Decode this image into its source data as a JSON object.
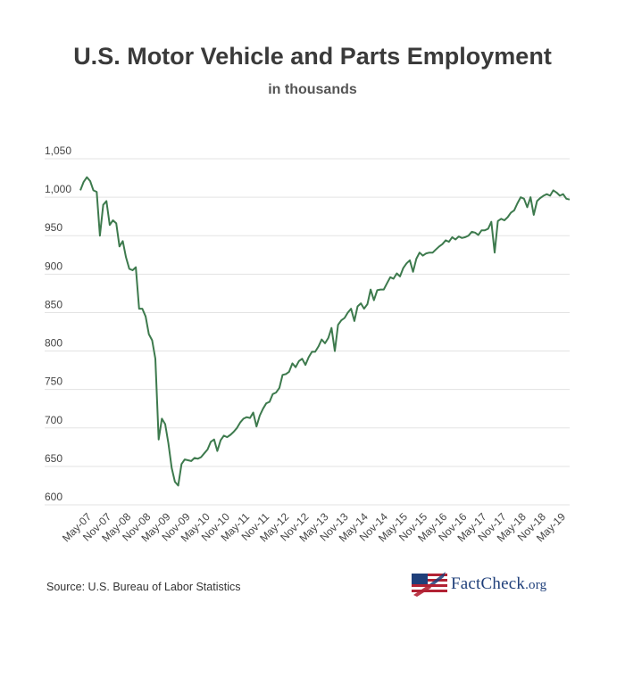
{
  "chart_data": {
    "type": "line",
    "title": "U.S. Motor Vehicle and Parts Employment",
    "subtitle": "in thousands",
    "ylim": [
      600,
      1050
    ],
    "yticks": [
      600,
      650,
      700,
      750,
      800,
      850,
      900,
      950,
      1000,
      1050
    ],
    "ytick_labels": [
      "600",
      "650",
      "700",
      "750",
      "800",
      "850",
      "900",
      "950",
      "1,000",
      "1,050"
    ],
    "xtick_labels": [
      "May-07",
      "Nov-07",
      "May-08",
      "Nov-08",
      "May-09",
      "Nov-09",
      "May-10",
      "Nov-10",
      "May-11",
      "Nov-11",
      "May-12",
      "Nov-12",
      "May-13",
      "Nov-13",
      "May-14",
      "Nov-14",
      "May-15",
      "Nov-15",
      "May-16",
      "Nov-16",
      "May-17",
      "Nov-17",
      "May-18",
      "Nov-18",
      "May-19"
    ],
    "grid": true,
    "line_color": "#3d7a4d",
    "series": [
      {
        "values": [
          1009,
          1020,
          1026,
          1021,
          1009,
          1007,
          950,
          990,
          995,
          964,
          970,
          966,
          936,
          943,
          922,
          907,
          905,
          909,
          855,
          855,
          845,
          822,
          814,
          790,
          685,
          712,
          705,
          680,
          648,
          630,
          625,
          653,
          659,
          658,
          657,
          661,
          660,
          662,
          667,
          672,
          682,
          685,
          670,
          684,
          690,
          688,
          691,
          695,
          700,
          707,
          712,
          714,
          713,
          720,
          702,
          716,
          725,
          732,
          734,
          744,
          746,
          752,
          769,
          770,
          773,
          784,
          779,
          787,
          790,
          782,
          792,
          799,
          799,
          806,
          815,
          810,
          817,
          830,
          800,
          834,
          840,
          843,
          850,
          855,
          839,
          858,
          862,
          855,
          861,
          880,
          866,
          879,
          880,
          880,
          888,
          896,
          894,
          901,
          897,
          908,
          914,
          918,
          903,
          920,
          928,
          924,
          927,
          928,
          928,
          932,
          936,
          939,
          944,
          942,
          948,
          945,
          949,
          947,
          948,
          950,
          955,
          954,
          951,
          957,
          957,
          959,
          968,
          928,
          969,
          972,
          970,
          974,
          980,
          983,
          992,
          1000,
          998,
          987,
          1000,
          977,
          995,
          999,
          1002,
          1004,
          1002,
          1009,
          1006,
          1002,
          1004,
          998,
          997
        ]
      }
    ]
  },
  "source_text": "Source: U.S. Bureau of Labor Statistics",
  "logo": {
    "text_main": "FactCheck",
    "text_suffix": ".org"
  }
}
